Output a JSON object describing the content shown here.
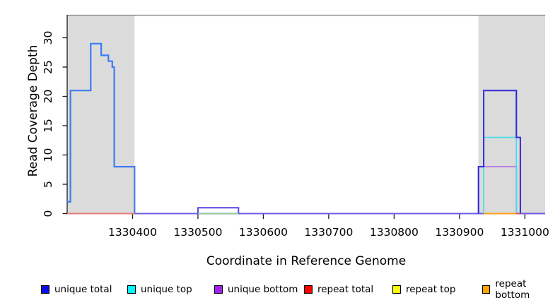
{
  "chart_data": {
    "type": "line",
    "subtype": "step-coverage-depth",
    "title": "",
    "xlabel": "Coordinate in Reference Genome",
    "ylabel": "Read Coverage Depth",
    "xlim": [
      1330300,
      1331031
    ],
    "ylim": [
      0,
      34
    ],
    "xticks": [
      1330400,
      1330500,
      1330600,
      1330700,
      1330800,
      1330900,
      1331000
    ],
    "yticks": [
      0,
      5,
      10,
      15,
      20,
      25,
      30
    ],
    "grid": false,
    "axis_color": "#1a1a1a",
    "top_border_color": "#8a8a8a",
    "shaded_regions": {
      "color": "#dbdbdb",
      "ranges": [
        [
          1330300,
          1330403
        ],
        [
          1330929,
          1331031
        ]
      ]
    },
    "series": [
      {
        "name": "unique bottom / total baseline (depth 0)",
        "color": "#6F5BE9",
        "width": 2,
        "path": [
          [
            1330300,
            0
          ],
          [
            1331031,
            0
          ]
        ]
      },
      {
        "name": "unique bottom (right repeat region, depth 8)",
        "color": "#B46FE8",
        "width": 1.8,
        "path": [
          [
            1330929,
            0
          ],
          [
            1330929,
            8
          ],
          [
            1330987,
            8
          ],
          [
            1330987,
            0
          ]
        ]
      },
      {
        "name": "unique top (right repeat region, depth 13)",
        "color": "#3CDDE9",
        "width": 1.6,
        "path": [
          [
            1330937,
            0
          ],
          [
            1330937,
            13
          ],
          [
            1330987,
            13
          ],
          [
            1330987,
            0
          ]
        ]
      },
      {
        "name": "unique total (right repeat region, depth 8-21-13)",
        "color": "#2F28D9",
        "width": 2,
        "path": [
          [
            1330929,
            0
          ],
          [
            1330929,
            8
          ],
          [
            1330937,
            8
          ],
          [
            1330937,
            21
          ],
          [
            1330987,
            21
          ],
          [
            1330987,
            13
          ],
          [
            1330993,
            13
          ],
          [
            1330993,
            0
          ]
        ]
      },
      {
        "name": "unique total+bottom bump (depth 1)",
        "color": "#5847E3",
        "width": 2,
        "path": [
          [
            1330500,
            0
          ],
          [
            1330500,
            1
          ],
          [
            1330562,
            1
          ],
          [
            1330562,
            0
          ]
        ]
      },
      {
        "name": "unique total (left repeat region, depth 2-21-29-27-26-25-8)",
        "color": "#3E7CF2",
        "width": 2.2,
        "path": [
          [
            1330300,
            2
          ],
          [
            1330305,
            2
          ],
          [
            1330305,
            21
          ],
          [
            1330336,
            21
          ],
          [
            1330336,
            29
          ],
          [
            1330352,
            29
          ],
          [
            1330352,
            27
          ],
          [
            1330363,
            27
          ],
          [
            1330363,
            26
          ],
          [
            1330369,
            26
          ],
          [
            1330369,
            25
          ],
          [
            1330372,
            25
          ],
          [
            1330372,
            8
          ],
          [
            1330403,
            8
          ],
          [
            1330403,
            0
          ]
        ]
      },
      {
        "name": "repeat total at zero (left region)",
        "color": "#E87C7C",
        "width": 2,
        "path": [
          [
            1330300,
            0
          ],
          [
            1330403,
            0
          ]
        ]
      },
      {
        "name": "unique/repeat top at zero (under bump)",
        "color": "#8CD98C",
        "width": 1.6,
        "path": [
          [
            1330500,
            0
          ],
          [
            1330562,
            0
          ]
        ]
      },
      {
        "name": "repeat bottom at zero (right region)",
        "color": "#FF9F1A",
        "width": 2,
        "path": [
          [
            1330937,
            0
          ],
          [
            1330987,
            0
          ]
        ]
      },
      {
        "name": "repeat total at zero (right region)",
        "color": "#E05050",
        "width": 2,
        "path": [
          [
            1330987,
            0
          ],
          [
            1330993,
            0
          ]
        ]
      }
    ],
    "legend": {
      "position": "bottom",
      "items": [
        {
          "label": "unique total",
          "color": "#0D0DE8"
        },
        {
          "label": "unique top",
          "color": "#00F5FF"
        },
        {
          "label": "unique bottom",
          "color": "#A020F0"
        },
        {
          "label": "repeat total",
          "color": "#FF0000"
        },
        {
          "label": "repeat top",
          "color": "#FFFF00"
        },
        {
          "label": "repeat bottom",
          "color": "#FFA500"
        }
      ]
    }
  }
}
